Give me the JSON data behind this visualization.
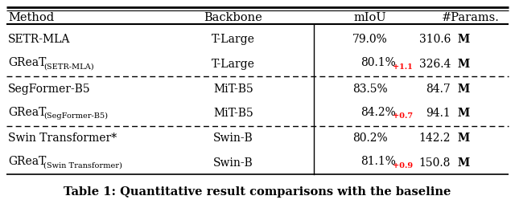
{
  "title": "Table 1: Quantitative result comparisons with the baseline",
  "headers": [
    "Method",
    "Backbone",
    "mIoU",
    "#Params."
  ],
  "rows": [
    {
      "method_main": "SETR-MLA",
      "method_sub": "",
      "backbone": "T-Large",
      "miou_main": "79.0%",
      "miou_sub": "",
      "params_num": "310.6",
      "is_great": false,
      "dashed_below": false
    },
    {
      "method_main": "GReaT",
      "method_sub": "(SETR-MLA)",
      "backbone": "T-Large",
      "miou_main": "80.1%",
      "miou_sub": "+1.1",
      "params_num": "326.4",
      "is_great": true,
      "dashed_below": true
    },
    {
      "method_main": "SegFormer-B5",
      "method_sub": "",
      "backbone": "MiT-B5",
      "miou_main": "83.5%",
      "miou_sub": "",
      "params_num": "84.7",
      "is_great": false,
      "dashed_below": false
    },
    {
      "method_main": "GReaT",
      "method_sub": "(SegFormer-B5)",
      "backbone": "MiT-B5",
      "miou_main": "84.2%",
      "miou_sub": "+0.7",
      "params_num": "94.1",
      "is_great": true,
      "dashed_below": true
    },
    {
      "method_main": "Swin Transformer*",
      "method_sub": "",
      "backbone": "Swin-B",
      "miou_main": "80.2%",
      "miou_sub": "",
      "params_num": "142.2",
      "is_great": false,
      "dashed_below": false
    },
    {
      "method_main": "GReaT",
      "method_sub": "(Swin Transformer)",
      "backbone": "Swin-B",
      "miou_main": "81.1%",
      "miou_sub": "+0.9",
      "params_num": "150.8",
      "is_great": true,
      "dashed_below": false
    }
  ],
  "text_color": "#000000",
  "red_color": "#ff0000",
  "bg_color": "#ffffff",
  "title_fontsize": 10.5,
  "header_fontsize": 10.5,
  "cell_fontsize": 10.0,
  "sub_fontsize": 7.0
}
